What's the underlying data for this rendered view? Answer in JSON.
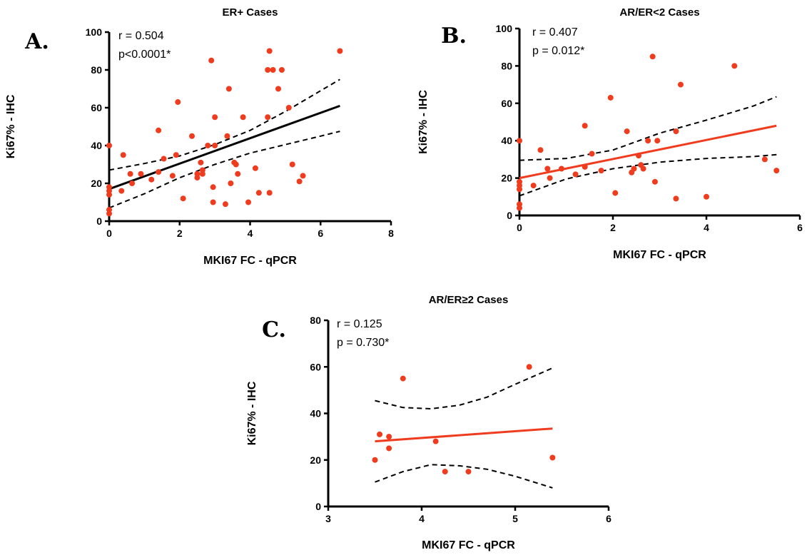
{
  "chart_data": [
    {
      "type": "scatter",
      "panel_letter": "A.",
      "title": "ER+ Cases",
      "xlabel": "MKI67 FC - qPCR",
      "ylabel": "Ki67% - IHC",
      "xlim": [
        0,
        8
      ],
      "ylim": [
        0,
        100
      ],
      "xticks": [
        "0",
        "2",
        "4",
        "6",
        "8"
      ],
      "yticks": [
        "0",
        "20",
        "40",
        "60",
        "80",
        "100"
      ],
      "stats": [
        "r = 0.504",
        "p<0.0001*"
      ],
      "point_color": "#f03c1e",
      "fit_color": "#000000",
      "points": [
        [
          0,
          40
        ],
        [
          0,
          18
        ],
        [
          0,
          16
        ],
        [
          0,
          14
        ],
        [
          0,
          6
        ],
        [
          0,
          4
        ],
        [
          0.35,
          16
        ],
        [
          0.4,
          35
        ],
        [
          0.6,
          25
        ],
        [
          0.65,
          20
        ],
        [
          0.9,
          25
        ],
        [
          1.2,
          22
        ],
        [
          1.4,
          48
        ],
        [
          1.4,
          26
        ],
        [
          1.55,
          33
        ],
        [
          1.8,
          24
        ],
        [
          1.9,
          35
        ],
        [
          1.95,
          63
        ],
        [
          2.1,
          12
        ],
        [
          2.35,
          45
        ],
        [
          2.5,
          23
        ],
        [
          2.5,
          25
        ],
        [
          2.6,
          31
        ],
        [
          2.65,
          27
        ],
        [
          2.65,
          25
        ],
        [
          2.8,
          40
        ],
        [
          2.9,
          85
        ],
        [
          2.95,
          18
        ],
        [
          2.95,
          10
        ],
        [
          3.0,
          40
        ],
        [
          3.0,
          55
        ],
        [
          3.3,
          9
        ],
        [
          3.35,
          45
        ],
        [
          3.4,
          70
        ],
        [
          3.45,
          20
        ],
        [
          3.55,
          31
        ],
        [
          3.6,
          30
        ],
        [
          3.65,
          25
        ],
        [
          3.8,
          55
        ],
        [
          3.95,
          10
        ],
        [
          4.15,
          28
        ],
        [
          4.25,
          15
        ],
        [
          4.5,
          55
        ],
        [
          4.55,
          90
        ],
        [
          4.5,
          80
        ],
        [
          4.55,
          15
        ],
        [
          4.65,
          80
        ],
        [
          4.8,
          70
        ],
        [
          4.9,
          80
        ],
        [
          5.1,
          60
        ],
        [
          5.2,
          30
        ],
        [
          5.4,
          21
        ],
        [
          5.5,
          24
        ],
        [
          6.55,
          90
        ]
      ],
      "fit": {
        "x": [
          0,
          6.55
        ],
        "y": [
          17,
          61
        ]
      },
      "ci_upper": {
        "x": [
          0,
          1,
          2,
          3,
          4,
          5,
          6,
          6.55
        ],
        "y": [
          27,
          30.5,
          34.5,
          40.5,
          48,
          58,
          69,
          75
        ]
      },
      "ci_lower": {
        "x": [
          0,
          1,
          2,
          3,
          4,
          5,
          6,
          6.55
        ],
        "y": [
          7,
          14.5,
          23,
          30,
          36,
          40.5,
          45,
          47.5
        ]
      }
    },
    {
      "type": "scatter",
      "panel_letter": "B.",
      "title": "AR/ER<2 Cases",
      "xlabel": "MKI67 FC - qPCR",
      "ylabel": "Ki67% - IHC",
      "xlim": [
        0,
        6
      ],
      "ylim": [
        0,
        100
      ],
      "xticks": [
        "0",
        "2",
        "4",
        "6"
      ],
      "yticks": [
        "0",
        "20",
        "40",
        "60",
        "80",
        "100"
      ],
      "stats": [
        "r = 0.407",
        "p = 0.012*"
      ],
      "point_color": "#f03c1e",
      "fit_color": "#f03c1e",
      "points": [
        [
          0,
          40
        ],
        [
          0,
          18
        ],
        [
          0,
          16
        ],
        [
          0,
          14
        ],
        [
          0,
          6
        ],
        [
          0,
          4
        ],
        [
          0.3,
          16
        ],
        [
          0.45,
          35
        ],
        [
          0.6,
          25
        ],
        [
          0.65,
          20
        ],
        [
          0.9,
          25
        ],
        [
          1.2,
          22
        ],
        [
          1.4,
          48
        ],
        [
          1.4,
          26
        ],
        [
          1.55,
          33
        ],
        [
          1.75,
          24
        ],
        [
          1.95,
          63
        ],
        [
          2.05,
          12
        ],
        [
          2.3,
          45
        ],
        [
          2.4,
          23
        ],
        [
          2.45,
          25
        ],
        [
          2.55,
          32
        ],
        [
          2.6,
          27
        ],
        [
          2.65,
          25
        ],
        [
          2.75,
          40
        ],
        [
          2.85,
          85
        ],
        [
          2.9,
          18
        ],
        [
          2.95,
          40
        ],
        [
          3.35,
          45
        ],
        [
          3.35,
          9
        ],
        [
          3.45,
          70
        ],
        [
          4.0,
          10
        ],
        [
          4.6,
          80
        ],
        [
          5.25,
          30
        ],
        [
          5.5,
          24
        ]
      ],
      "fit": {
        "x": [
          0,
          5.5
        ],
        "y": [
          20,
          48
        ]
      },
      "ci_upper": {
        "x": [
          0,
          1,
          2,
          3,
          4,
          5,
          5.5
        ],
        "y": [
          29.5,
          30.5,
          35,
          44,
          51,
          58.5,
          63.5
        ]
      },
      "ci_lower": {
        "x": [
          0,
          1,
          2,
          3,
          4,
          5,
          5.5
        ],
        "y": [
          10.5,
          19.5,
          25,
          28.5,
          30.5,
          31.5,
          32.5
        ]
      }
    },
    {
      "type": "scatter",
      "panel_letter": "C.",
      "title": "AR/ER≥2 Cases",
      "xlabel": "MKI67 FC - qPCR",
      "ylabel": "Ki67% - IHC",
      "xlim": [
        3,
        6
      ],
      "ylim": [
        0,
        80
      ],
      "xticks": [
        "3",
        "4",
        "5",
        "6"
      ],
      "yticks": [
        "0",
        "20",
        "40",
        "60",
        "80"
      ],
      "stats": [
        "r = 0.125",
        "p = 0.730*"
      ],
      "point_color": "#f03c1e",
      "fit_color": "#f03c1e",
      "points": [
        [
          3.5,
          20
        ],
        [
          3.55,
          31
        ],
        [
          3.65,
          30
        ],
        [
          3.65,
          25
        ],
        [
          3.8,
          55
        ],
        [
          4.15,
          28
        ],
        [
          4.25,
          15
        ],
        [
          4.5,
          15
        ],
        [
          5.15,
          60
        ],
        [
          5.4,
          21
        ]
      ],
      "fit": {
        "x": [
          3.5,
          5.4
        ],
        "y": [
          28,
          33.5
        ]
      },
      "ci_upper": {
        "x": [
          3.5,
          3.8,
          4.1,
          4.4,
          4.7,
          5.0,
          5.4
        ],
        "y": [
          45.5,
          42.5,
          42,
          43.5,
          47,
          52.5,
          59.5
        ]
      },
      "ci_lower": {
        "x": [
          3.5,
          3.8,
          4.1,
          4.4,
          4.7,
          5.0,
          5.4
        ],
        "y": [
          10.5,
          15,
          18,
          17.5,
          16,
          13,
          8
        ]
      }
    }
  ]
}
